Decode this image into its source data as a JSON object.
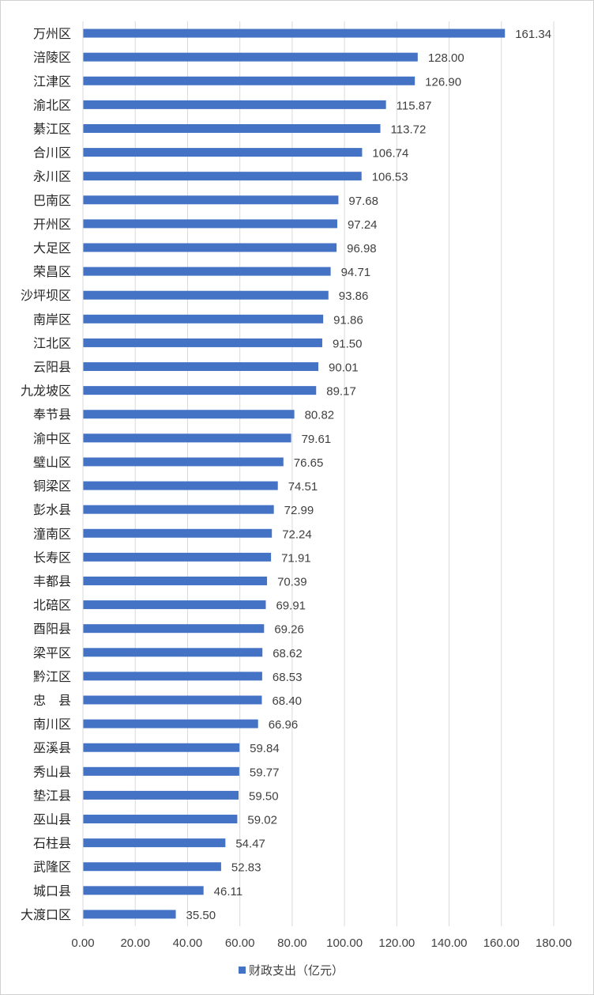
{
  "chart_data": {
    "type": "bar",
    "orientation": "horizontal",
    "categories": [
      "万州区",
      "涪陵区",
      "江津区",
      "渝北区",
      "綦江区",
      "合川区",
      "永川区",
      "巴南区",
      "开州区",
      "大足区",
      "荣昌区",
      "沙坪坝区",
      "南岸区",
      "江北区",
      "云阳县",
      "九龙坡区",
      "奉节县",
      "渝中区",
      "璧山区",
      "铜梁区",
      "彭水县",
      "潼南区",
      "长寿区",
      "丰都县",
      "北碚区",
      "酉阳县",
      "梁平区",
      "黔江区",
      "忠　县",
      "南川区",
      "巫溪县",
      "秀山县",
      "垫江县",
      "巫山县",
      "石柱县",
      "武隆区",
      "城口县",
      "大渡口区"
    ],
    "series": [
      {
        "name": "财政支出（亿元）",
        "values": [
          161.34,
          128.0,
          126.9,
          115.87,
          113.72,
          106.74,
          106.53,
          97.68,
          97.24,
          96.98,
          94.71,
          93.86,
          91.86,
          91.5,
          90.01,
          89.17,
          80.82,
          79.61,
          76.65,
          74.51,
          72.99,
          72.24,
          71.91,
          70.39,
          69.91,
          69.26,
          68.62,
          68.53,
          68.4,
          66.96,
          59.84,
          59.77,
          59.5,
          59.02,
          54.47,
          52.83,
          46.11,
          35.5
        ],
        "value_labels": [
          "161.34",
          "128.00",
          "126.90",
          "115.87",
          "113.72",
          "106.74",
          "106.53",
          "97.68",
          "97.24",
          "96.98",
          "94.71",
          "93.86",
          "91.86",
          "91.50",
          "90.01",
          "89.17",
          "80.82",
          "79.61",
          "76.65",
          "74.51",
          "72.99",
          "72.24",
          "71.91",
          "70.39",
          "69.91",
          "69.26",
          "68.62",
          "68.53",
          "68.40",
          "66.96",
          "59.84",
          "59.77",
          "59.50",
          "59.02",
          "54.47",
          "52.83",
          "46.11",
          "35.50"
        ]
      }
    ],
    "xlim": [
      0,
      180
    ],
    "x_ticks": [
      "0.00",
      "20.00",
      "40.00",
      "60.00",
      "80.00",
      "100.00",
      "120.00",
      "140.00",
      "160.00",
      "180.00"
    ],
    "title": "",
    "xlabel": "",
    "ylabel": "",
    "grid": "vertical",
    "legend": "bottom",
    "colors": {
      "bar": "#4472C4",
      "grid": "#d9d9d9",
      "text": "#404040"
    }
  }
}
